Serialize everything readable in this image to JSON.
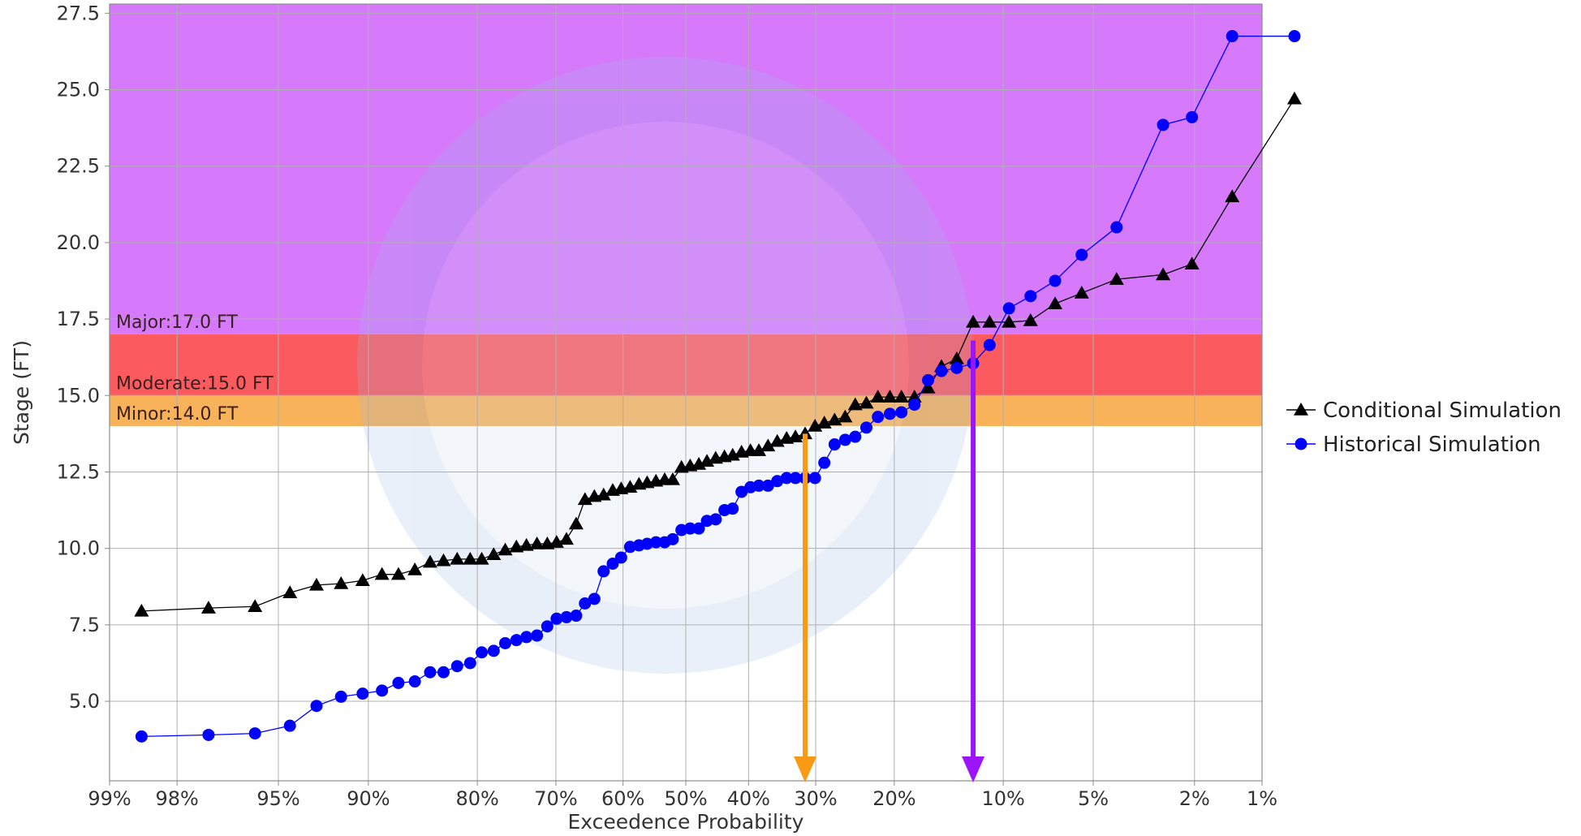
{
  "chart_data": {
    "type": "line",
    "xlabel": "Exceedence Probability",
    "ylabel": "Stage (FT)",
    "x_axis_scale": "normal-probability",
    "x_ticks": [
      {
        "p": 0.99,
        "label": "99%"
      },
      {
        "p": 0.98,
        "label": "98%"
      },
      {
        "p": 0.95,
        "label": "95%"
      },
      {
        "p": 0.9,
        "label": "90%"
      },
      {
        "p": 0.8,
        "label": "80%"
      },
      {
        "p": 0.7,
        "label": "70%"
      },
      {
        "p": 0.6,
        "label": "60%"
      },
      {
        "p": 0.5,
        "label": "50%"
      },
      {
        "p": 0.4,
        "label": "40%"
      },
      {
        "p": 0.3,
        "label": "30%"
      },
      {
        "p": 0.2,
        "label": "20%"
      },
      {
        "p": 0.1,
        "label": "10%"
      },
      {
        "p": 0.05,
        "label": "5%"
      },
      {
        "p": 0.02,
        "label": "2%"
      },
      {
        "p": 0.01,
        "label": "1%"
      }
    ],
    "y_ticks": [
      {
        "v": 5.0,
        "label": "5.0"
      },
      {
        "v": 7.5,
        "label": "7.5"
      },
      {
        "v": 10.0,
        "label": "10.0"
      },
      {
        "v": 12.5,
        "label": "12.5"
      },
      {
        "v": 15.0,
        "label": "15.0"
      },
      {
        "v": 17.5,
        "label": "17.5"
      },
      {
        "v": 20.0,
        "label": "20.0"
      },
      {
        "v": 22.5,
        "label": "22.5"
      },
      {
        "v": 25.0,
        "label": "25.0"
      },
      {
        "v": 27.5,
        "label": "27.5"
      }
    ],
    "xlim": [
      0.99,
      0.01
    ],
    "ylim": [
      2.4,
      27.8
    ],
    "grid": true,
    "legend_position": "right",
    "flood_categories": [
      {
        "label": "Minor:14.0 FT",
        "from": 14.0,
        "to": 15.0,
        "color": "#f7b25a"
      },
      {
        "label": "Moderate:15.0 FT",
        "from": 15.0,
        "to": 17.0,
        "color": "#fb5a5e"
      },
      {
        "label": "Major:17.0 FT",
        "from": 17.0,
        "to": 27.8,
        "color": "#d679fb"
      }
    ],
    "series": [
      {
        "name": "Conditional Simulation",
        "marker": "triangle",
        "color": "#000000",
        "points": [
          [
            0.986,
            7.95
          ],
          [
            0.973,
            8.05
          ],
          [
            0.959,
            8.1
          ],
          [
            0.945,
            8.55
          ],
          [
            0.932,
            8.8
          ],
          [
            0.918,
            8.85
          ],
          [
            0.904,
            8.95
          ],
          [
            0.89,
            9.15
          ],
          [
            0.877,
            9.15
          ],
          [
            0.863,
            9.3
          ],
          [
            0.849,
            9.55
          ],
          [
            0.836,
            9.6
          ],
          [
            0.822,
            9.65
          ],
          [
            0.808,
            9.65
          ],
          [
            0.795,
            9.65
          ],
          [
            0.781,
            9.8
          ],
          [
            0.767,
            9.95
          ],
          [
            0.753,
            10.05
          ],
          [
            0.74,
            10.1
          ],
          [
            0.726,
            10.15
          ],
          [
            0.712,
            10.15
          ],
          [
            0.699,
            10.2
          ],
          [
            0.685,
            10.3
          ],
          [
            0.671,
            10.8
          ],
          [
            0.658,
            11.6
          ],
          [
            0.644,
            11.7
          ],
          [
            0.63,
            11.75
          ],
          [
            0.616,
            11.9
          ],
          [
            0.603,
            11.95
          ],
          [
            0.589,
            12.0
          ],
          [
            0.575,
            12.1
          ],
          [
            0.562,
            12.15
          ],
          [
            0.548,
            12.2
          ],
          [
            0.534,
            12.25
          ],
          [
            0.521,
            12.25
          ],
          [
            0.507,
            12.65
          ],
          [
            0.493,
            12.7
          ],
          [
            0.479,
            12.75
          ],
          [
            0.466,
            12.85
          ],
          [
            0.452,
            12.95
          ],
          [
            0.438,
            13.0
          ],
          [
            0.425,
            13.05
          ],
          [
            0.411,
            13.15
          ],
          [
            0.397,
            13.2
          ],
          [
            0.384,
            13.2
          ],
          [
            0.37,
            13.35
          ],
          [
            0.356,
            13.5
          ],
          [
            0.342,
            13.6
          ],
          [
            0.329,
            13.65
          ],
          [
            0.315,
            13.75
          ],
          [
            0.301,
            14.0
          ],
          [
            0.288,
            14.1
          ],
          [
            0.274,
            14.2
          ],
          [
            0.26,
            14.3
          ],
          [
            0.247,
            14.7
          ],
          [
            0.233,
            14.75
          ],
          [
            0.219,
            14.95
          ],
          [
            0.205,
            14.95
          ],
          [
            0.192,
            14.95
          ],
          [
            0.178,
            14.95
          ],
          [
            0.164,
            15.25
          ],
          [
            0.151,
            15.95
          ],
          [
            0.137,
            16.2
          ],
          [
            0.123,
            17.4
          ],
          [
            0.11,
            17.4
          ],
          [
            0.096,
            17.4
          ],
          [
            0.082,
            17.45
          ],
          [
            0.068,
            18.0
          ],
          [
            0.055,
            18.35
          ],
          [
            0.041,
            18.8
          ],
          [
            0.027,
            18.95
          ],
          [
            0.0205,
            19.3
          ],
          [
            0.0137,
            21.5
          ],
          [
            0.007,
            24.7
          ]
        ]
      },
      {
        "name": "Historical Simulation",
        "marker": "circle",
        "color": "#0000ff",
        "points": [
          [
            0.986,
            3.85
          ],
          [
            0.973,
            3.9
          ],
          [
            0.959,
            3.95
          ],
          [
            0.945,
            4.2
          ],
          [
            0.932,
            4.85
          ],
          [
            0.918,
            5.15
          ],
          [
            0.904,
            5.25
          ],
          [
            0.89,
            5.35
          ],
          [
            0.877,
            5.6
          ],
          [
            0.863,
            5.65
          ],
          [
            0.849,
            5.95
          ],
          [
            0.836,
            5.95
          ],
          [
            0.822,
            6.15
          ],
          [
            0.808,
            6.25
          ],
          [
            0.795,
            6.6
          ],
          [
            0.781,
            6.65
          ],
          [
            0.767,
            6.9
          ],
          [
            0.753,
            7.0
          ],
          [
            0.74,
            7.1
          ],
          [
            0.726,
            7.15
          ],
          [
            0.712,
            7.45
          ],
          [
            0.699,
            7.7
          ],
          [
            0.685,
            7.75
          ],
          [
            0.671,
            7.8
          ],
          [
            0.658,
            8.2
          ],
          [
            0.644,
            8.35
          ],
          [
            0.63,
            9.25
          ],
          [
            0.616,
            9.5
          ],
          [
            0.603,
            9.7
          ],
          [
            0.589,
            10.05
          ],
          [
            0.575,
            10.1
          ],
          [
            0.562,
            10.15
          ],
          [
            0.548,
            10.2
          ],
          [
            0.534,
            10.2
          ],
          [
            0.521,
            10.3
          ],
          [
            0.507,
            10.6
          ],
          [
            0.493,
            10.65
          ],
          [
            0.479,
            10.65
          ],
          [
            0.466,
            10.9
          ],
          [
            0.452,
            10.95
          ],
          [
            0.438,
            11.25
          ],
          [
            0.425,
            11.3
          ],
          [
            0.411,
            11.85
          ],
          [
            0.397,
            12.0
          ],
          [
            0.384,
            12.05
          ],
          [
            0.37,
            12.05
          ],
          [
            0.356,
            12.2
          ],
          [
            0.342,
            12.3
          ],
          [
            0.329,
            12.3
          ],
          [
            0.315,
            12.3
          ],
          [
            0.301,
            12.3
          ],
          [
            0.288,
            12.8
          ],
          [
            0.274,
            13.4
          ],
          [
            0.26,
            13.55
          ],
          [
            0.247,
            13.65
          ],
          [
            0.233,
            13.95
          ],
          [
            0.219,
            14.3
          ],
          [
            0.205,
            14.4
          ],
          [
            0.192,
            14.45
          ],
          [
            0.178,
            14.7
          ],
          [
            0.164,
            15.5
          ],
          [
            0.151,
            15.8
          ],
          [
            0.137,
            15.9
          ],
          [
            0.123,
            16.05
          ],
          [
            0.11,
            16.65
          ],
          [
            0.096,
            17.85
          ],
          [
            0.082,
            18.25
          ],
          [
            0.068,
            18.75
          ],
          [
            0.055,
            19.6
          ],
          [
            0.041,
            20.5
          ],
          [
            0.027,
            23.85
          ],
          [
            0.0205,
            24.1
          ],
          [
            0.0137,
            26.75
          ],
          [
            0.007,
            26.75
          ]
        ]
      }
    ],
    "annotations": [
      {
        "type": "arrow",
        "color": "#f89a14",
        "x": 0.315,
        "y_from": 13.75,
        "y_to": 2.4
      },
      {
        "type": "arrow",
        "color": "#9b14fa",
        "x": 0.123,
        "y_from": 16.8,
        "y_to": 2.4
      }
    ]
  }
}
